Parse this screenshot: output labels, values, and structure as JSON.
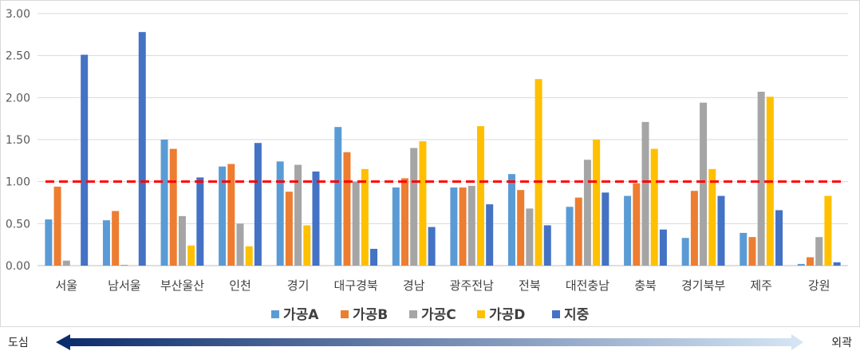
{
  "chart_data": {
    "type": "bar",
    "ylim": [
      0,
      3.0
    ],
    "yticks": [
      "0.00",
      "0.50",
      "1.00",
      "1.50",
      "2.00",
      "2.50",
      "3.00"
    ],
    "grid": true,
    "legend_placement": "bottom",
    "categories": [
      "서울",
      "남서울",
      "부산울산",
      "인천",
      "경기",
      "대구경북",
      "경남",
      "광주전남",
      "전북",
      "대전충남",
      "충북",
      "경기북부",
      "제주",
      "강원"
    ],
    "series": [
      {
        "name": "가공A",
        "color": "#5B9BD5",
        "values": [
          0.55,
          0.54,
          1.5,
          1.18,
          1.24,
          1.65,
          0.93,
          0.93,
          1.09,
          0.7,
          0.83,
          0.33,
          0.39,
          0.02
        ]
      },
      {
        "name": "가공B",
        "color": "#ED7D31",
        "values": [
          0.94,
          0.65,
          1.39,
          1.21,
          0.88,
          1.35,
          1.04,
          0.93,
          0.9,
          0.81,
          0.98,
          0.89,
          0.34,
          0.1
        ]
      },
      {
        "name": "가공C",
        "color": "#A5A5A5",
        "values": [
          0.06,
          0.01,
          0.59,
          0.5,
          1.2,
          1.0,
          1.4,
          0.95,
          0.68,
          1.26,
          1.71,
          1.94,
          2.07,
          0.34
        ]
      },
      {
        "name": "가공D",
        "color": "#FFC000",
        "values": [
          0.0,
          0.0,
          0.24,
          0.23,
          0.48,
          1.15,
          1.48,
          1.66,
          2.22,
          1.5,
          1.39,
          1.15,
          2.01,
          0.83
        ]
      },
      {
        "name": "지중",
        "color": "#4472C4",
        "values": [
          2.51,
          2.78,
          1.05,
          1.46,
          1.12,
          0.2,
          0.46,
          0.73,
          0.48,
          0.87,
          0.43,
          0.83,
          0.66,
          0.04
        ]
      }
    ],
    "reference_line": {
      "value": 1.0,
      "color": "#FF0000",
      "style": "dashed"
    },
    "gradient_arrow": {
      "left_label": "도심",
      "right_label": "외곽",
      "start_color": "#0B2A6B",
      "end_color": "#D6E6F5"
    }
  }
}
